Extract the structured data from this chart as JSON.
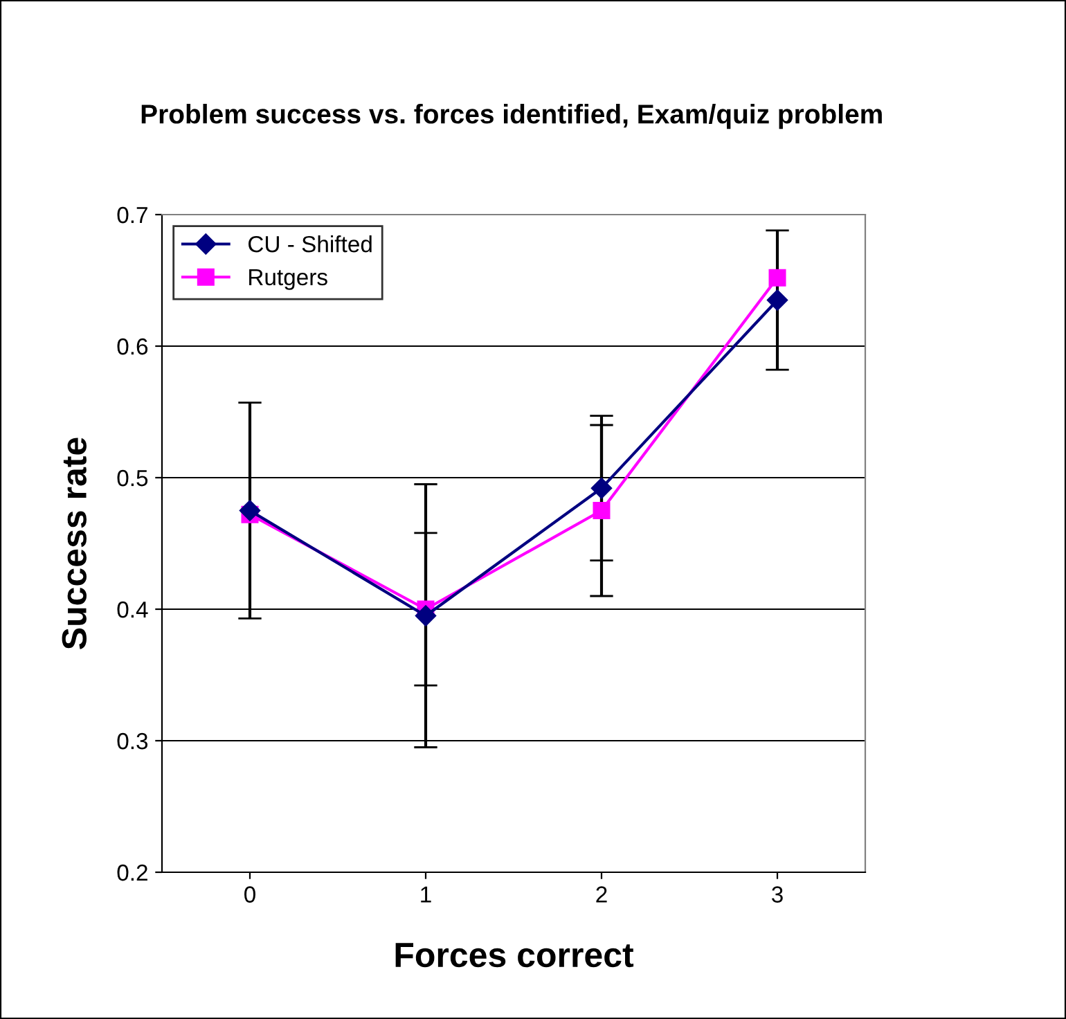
{
  "chart_data": {
    "type": "line",
    "title": "Problem success vs. forces identified, Exam/quiz problem",
    "xlabel": "Forces correct",
    "ylabel": "Success rate",
    "categories": [
      "0",
      "1",
      "2",
      "3"
    ],
    "series": [
      {
        "name": "CU - Shifted",
        "color": "#000080",
        "marker": "diamond",
        "values": [
          0.475,
          0.395,
          0.492,
          0.635
        ],
        "errors": [
          0.082,
          0.1,
          0.055,
          0.053
        ]
      },
      {
        "name": "Rutgers",
        "color": "#ff00ff",
        "marker": "square",
        "values": [
          0.472,
          0.4,
          0.475,
          0.652
        ],
        "errors": [
          null,
          0.058,
          0.065,
          null
        ]
      }
    ],
    "ylim": [
      0.2,
      0.7
    ],
    "yticks": [
      0.2,
      0.3,
      0.4,
      0.5,
      0.6,
      0.7
    ],
    "grid": "y",
    "legend": "top left",
    "line_style": "solid"
  }
}
